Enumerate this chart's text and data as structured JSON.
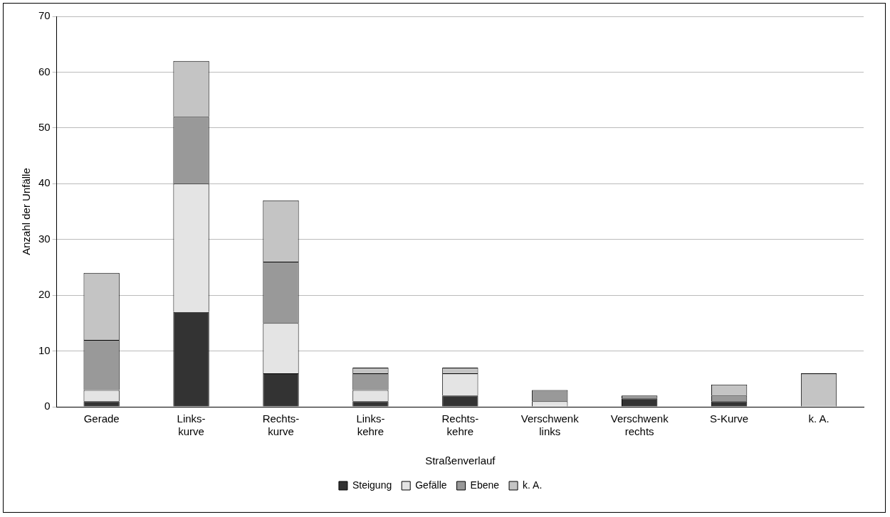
{
  "chart_data": {
    "type": "bar",
    "stacked": true,
    "xlabel": "Straßenverlauf",
    "ylabel": "Anzahl der Unfälle",
    "categories": [
      "Gerade",
      "Links-\nkurve",
      "Rechts-\nkurve",
      "Links-\nkehre",
      "Rechts-\nkehre",
      "Verschwenk\nlinks",
      "Verschwenk\nrechts",
      "S-Kurve",
      "k. A."
    ],
    "series": [
      {
        "name": "Steigung",
        "color": "#333333",
        "values": [
          1,
          17,
          6,
          1,
          2,
          0,
          1.5,
          1,
          0
        ]
      },
      {
        "name": "Gefälle",
        "color": "#e4e4e4",
        "values": [
          2,
          23,
          9,
          2,
          4,
          1,
          0,
          0,
          0
        ]
      },
      {
        "name": "Ebene",
        "color": "#999999",
        "values": [
          9,
          12,
          11,
          3,
          0,
          2,
          0.5,
          1,
          0
        ]
      },
      {
        "name": "k. A.",
        "color": "#c4c4c4",
        "values": [
          12,
          10,
          11,
          1,
          1,
          0,
          0,
          2,
          6
        ]
      }
    ],
    "ylim": [
      0,
      70
    ],
    "yticks": [
      0,
      10,
      20,
      30,
      40,
      50,
      60,
      70
    ],
    "grid": "y",
    "legend": "bottom"
  }
}
